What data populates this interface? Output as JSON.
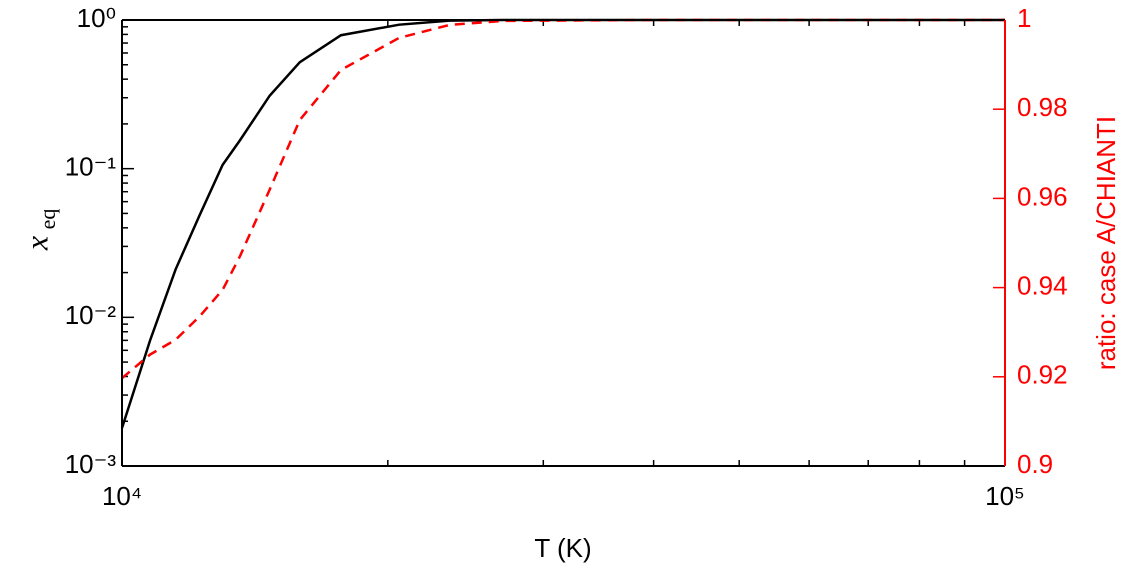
{
  "chart_data": {
    "type": "line",
    "xlabel": "T (K)",
    "ylabel": "x",
    "ylabel_subscript": "eq",
    "y2label": "ratio: case A/CHIANTI",
    "xscale": "log",
    "yscale": "log",
    "x": [
      10000,
      10760,
      11500,
      12250,
      13000,
      13600,
      14700,
      15900,
      17700,
      20600,
      23500,
      27000,
      40000,
      100000
    ],
    "series": [
      {
        "color": "#000000",
        "dash": false,
        "values": [
          0.0018,
          0.007,
          0.021,
          0.049,
          0.106,
          0.155,
          0.31,
          0.52,
          0.79,
          0.93,
          0.99,
          1.0,
          1.0,
          1.0
        ]
      },
      {
        "color": "#ff0000",
        "dash": true,
        "axis": "y2",
        "values": [
          0.9197,
          0.925,
          0.9283,
          0.9336,
          0.9395,
          0.947,
          0.962,
          0.9776,
          0.9888,
          0.996,
          0.9989,
          0.9998,
          1.0,
          1.0
        ]
      }
    ],
    "xlim": [
      10000,
      100000
    ],
    "xticks": [
      {
        "value": 10000,
        "label": "10⁴"
      },
      {
        "value": 100000,
        "label": "10⁵"
      }
    ],
    "ylim": [
      0.001,
      1
    ],
    "yticks": [
      {
        "value": 0.001,
        "label": "10⁻³"
      },
      {
        "value": 0.01,
        "label": "10⁻²"
      },
      {
        "value": 0.1,
        "label": "10⁻¹"
      },
      {
        "value": 1,
        "label": "10⁰"
      }
    ],
    "y2lim": [
      0.9,
      1
    ],
    "y2ticks": [
      0.9,
      0.92,
      0.94,
      0.96,
      0.98,
      1
    ],
    "y2color": "#ff0000"
  }
}
